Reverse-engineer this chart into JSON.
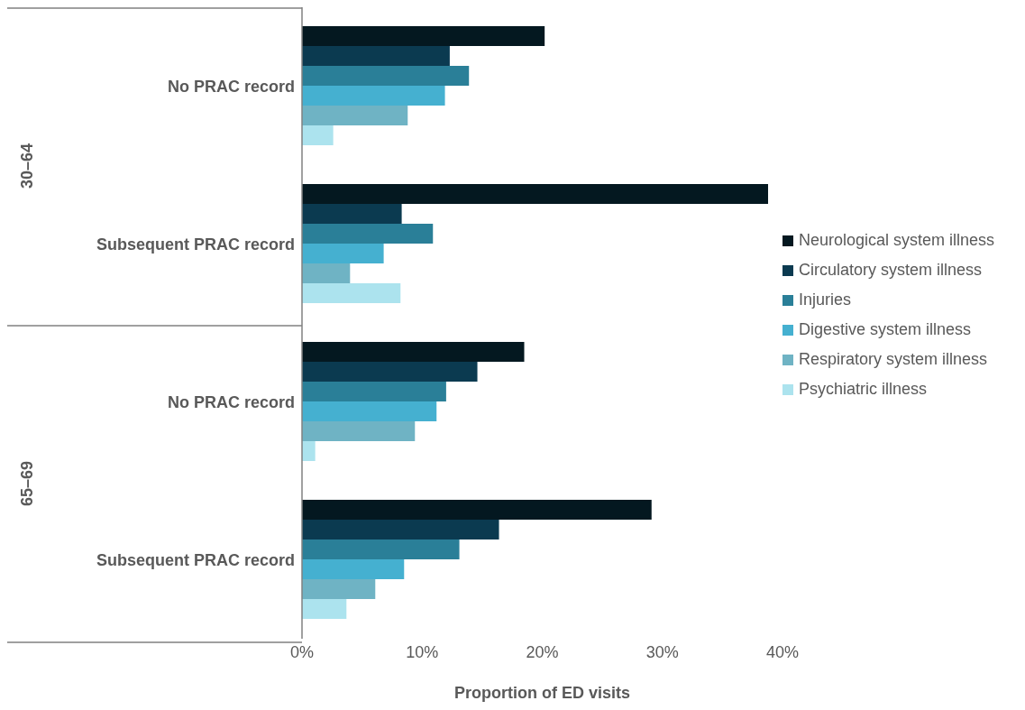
{
  "chart_data": {
    "type": "bar",
    "orientation": "horizontal",
    "xlabel": "Proportion of ED visits",
    "categories": [
      "No PRAC record",
      "Subsequent PRAC record",
      "No PRAC record",
      "Subsequent PRAC record"
    ],
    "annotations": [
      "30–64",
      "65–69"
    ],
    "series": [
      {
        "name": "Neurological system illness",
        "color": "#041820",
        "values": [
          20.2,
          38.8,
          18.5,
          29.1
        ]
      },
      {
        "name": "Circulatory system illness",
        "color": "#0b3a50",
        "values": [
          12.3,
          8.3,
          14.6,
          16.4
        ]
      },
      {
        "name": "Injuries",
        "color": "#2a7f98",
        "values": [
          13.9,
          10.9,
          12.0,
          13.1
        ]
      },
      {
        "name": "Digestive system illness",
        "color": "#45b0d0",
        "values": [
          11.9,
          6.8,
          11.2,
          8.5
        ]
      },
      {
        "name": "Respiratory system illness",
        "color": "#6fb3c4",
        "values": [
          8.8,
          4.0,
          9.4,
          6.1
        ]
      },
      {
        "name": "Psychiatric illness",
        "color": "#ace3ee",
        "values": [
          2.6,
          8.2,
          1.1,
          3.7
        ]
      }
    ],
    "xlim": [
      0,
      40
    ],
    "xticks": [
      {
        "value": 0,
        "label": "0%"
      },
      {
        "value": 10,
        "label": "10%"
      },
      {
        "value": 20,
        "label": "20%"
      },
      {
        "value": 30,
        "label": "30%"
      },
      {
        "value": 40,
        "label": "40%"
      }
    ],
    "legend": "right"
  }
}
